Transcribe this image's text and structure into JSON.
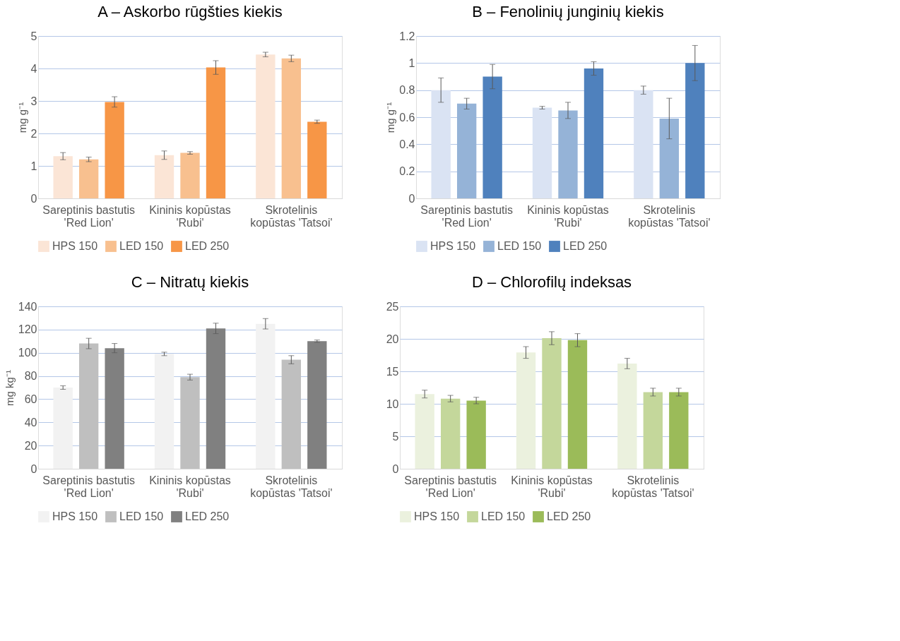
{
  "chart_data": [
    {
      "type": "bar",
      "title": "A – Askorbo rūgšties kiekis",
      "ylabel": "mg g⁻¹",
      "categories": [
        "Sareptinis bastutis\n'Red Lion'",
        "Kininis kopūstas\n'Rubi'",
        "Skrotelinis\nkopūstas 'Tatsoi'"
      ],
      "ylim": [
        0,
        5
      ],
      "yticks": [
        0,
        1,
        2,
        3,
        4,
        5
      ],
      "grid": "y",
      "legend": "bottom",
      "series": [
        {
          "name": "HPS 150",
          "color": "#fbe5d6",
          "values": [
            1.3,
            1.33,
            4.43
          ],
          "errors": [
            0.11,
            0.13,
            0.07
          ]
        },
        {
          "name": "LED 150",
          "color": "#f8c08f",
          "values": [
            1.2,
            1.4,
            4.31
          ],
          "errors": [
            0.07,
            0.04,
            0.1
          ]
        },
        {
          "name": "LED 250",
          "color": "#f79646",
          "values": [
            2.97,
            4.03,
            2.36
          ],
          "errors": [
            0.16,
            0.21,
            0.05
          ]
        }
      ]
    },
    {
      "type": "bar",
      "title": "B – Fenolinių junginių kiekis",
      "ylabel": "mg g⁻¹",
      "categories": [
        "Sareptinis bastutis\n'Red Lion'",
        "Kininis kopūstas\n'Rubi'",
        "Skrotelinis\nkopūstas 'Tatsoi'"
      ],
      "ylim": [
        0,
        1.2
      ],
      "yticks": [
        0,
        0.2,
        0.4,
        0.6,
        0.8,
        1,
        1.2
      ],
      "grid": "y",
      "legend": "bottom",
      "series": [
        {
          "name": "HPS 150",
          "color": "#dae3f3",
          "values": [
            0.8,
            0.67,
            0.8
          ],
          "errors": [
            0.09,
            0.01,
            0.03
          ]
        },
        {
          "name": "LED 150",
          "color": "#95b3d7",
          "values": [
            0.7,
            0.65,
            0.59
          ],
          "errors": [
            0.04,
            0.06,
            0.15
          ]
        },
        {
          "name": "LED 250",
          "color": "#4f81bd",
          "values": [
            0.9,
            0.96,
            1.0
          ],
          "errors": [
            0.09,
            0.05,
            0.13
          ]
        }
      ]
    },
    {
      "type": "bar",
      "title": "C – Nitratų kiekis",
      "ylabel": "mg kg⁻¹",
      "categories": [
        "Sareptinis bastutis\n'Red Lion'",
        "Kininis kopūstas\n'Rubi'",
        "Skrotelinis\nkopūstas 'Tatsoi'"
      ],
      "ylim": [
        0,
        140
      ],
      "yticks": [
        0,
        20,
        40,
        60,
        80,
        100,
        120,
        140
      ],
      "grid": "y",
      "legend": "bottom",
      "series": [
        {
          "name": "HPS 150",
          "color": "#f2f2f2",
          "values": [
            70,
            99,
            125
          ],
          "errors": [
            1.5,
            1.5,
            4.5
          ]
        },
        {
          "name": "LED 150",
          "color": "#bfbfbf",
          "values": [
            108,
            79,
            94
          ],
          "errors": [
            4.5,
            2.5,
            3.5
          ]
        },
        {
          "name": "LED 250",
          "color": "#808080",
          "values": [
            104,
            121,
            110
          ],
          "errors": [
            4,
            4.5,
            1
          ]
        }
      ]
    },
    {
      "type": "bar",
      "title": "D – Chlorofilų indeksas",
      "categories": [
        "Sareptinis bastutis\n'Red Lion'",
        "Kininis kopūstas\n'Rubi'",
        "Skrotelinis\nkopūstas 'Tatsoi'"
      ],
      "ylim": [
        0,
        25
      ],
      "yticks": [
        0,
        5,
        10,
        15,
        20,
        25
      ],
      "grid": "y",
      "legend": "bottom",
      "series": [
        {
          "name": "HPS 150",
          "color": "#ebf1de",
          "values": [
            11.5,
            17.9,
            16.2
          ],
          "errors": [
            0.6,
            0.9,
            0.8
          ]
        },
        {
          "name": "LED 150",
          "color": "#c4d79b",
          "values": [
            10.8,
            20.1,
            11.8
          ],
          "errors": [
            0.5,
            1.0,
            0.6
          ]
        },
        {
          "name": "LED 250",
          "color": "#9bbb59",
          "values": [
            10.5,
            19.8,
            11.8
          ],
          "errors": [
            0.5,
            1.0,
            0.6
          ]
        }
      ]
    }
  ]
}
